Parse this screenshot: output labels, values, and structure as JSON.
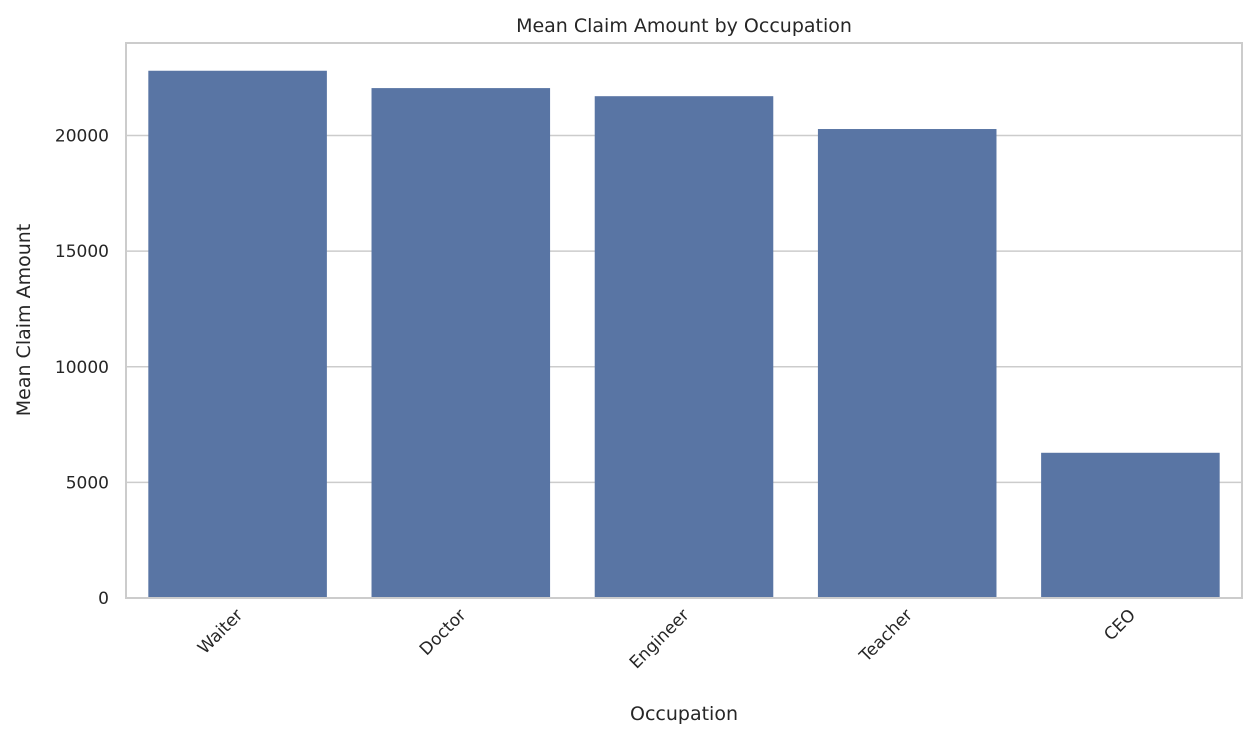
{
  "chart_data": {
    "type": "bar",
    "title": "Mean Claim Amount by Occupation",
    "xlabel": "Occupation",
    "ylabel": "Mean Claim Amount",
    "categories": [
      "Waiter",
      "Doctor",
      "Engineer",
      "Teacher",
      "CEO"
    ],
    "values": [
      22800,
      22050,
      21700,
      20280,
      6280
    ],
    "ylim": [
      0,
      24000
    ],
    "yticks": [
      0,
      5000,
      10000,
      15000,
      20000
    ],
    "grid": "y",
    "bar_color": "#5975a4",
    "grid_color": "#cccccc",
    "frame_color": "#cccccc",
    "text_color": "#262626"
  }
}
